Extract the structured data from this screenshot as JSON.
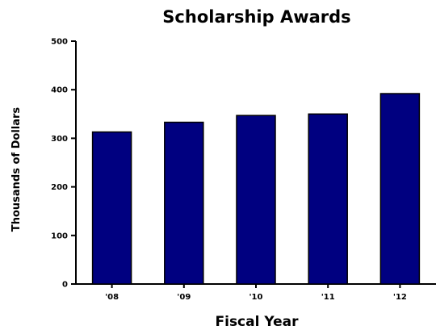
{
  "chart_data": {
    "type": "bar",
    "title": "Scholarship Awards",
    "xlabel": "Fiscal Year",
    "ylabel": "Thousands of Dollars",
    "categories": [
      "'08",
      "'09",
      "'10",
      "'11",
      "'12"
    ],
    "values": [
      313,
      333,
      347,
      350,
      392
    ],
    "ylim": [
      0,
      500
    ],
    "yticks": [
      "0",
      "100",
      "200",
      "300",
      "400",
      "500"
    ],
    "ytick_values": [
      0,
      100,
      200,
      300,
      400,
      500
    ],
    "grid": false,
    "legend": "none",
    "bar_color": "#000080",
    "bar_edge_color": "#000000"
  }
}
